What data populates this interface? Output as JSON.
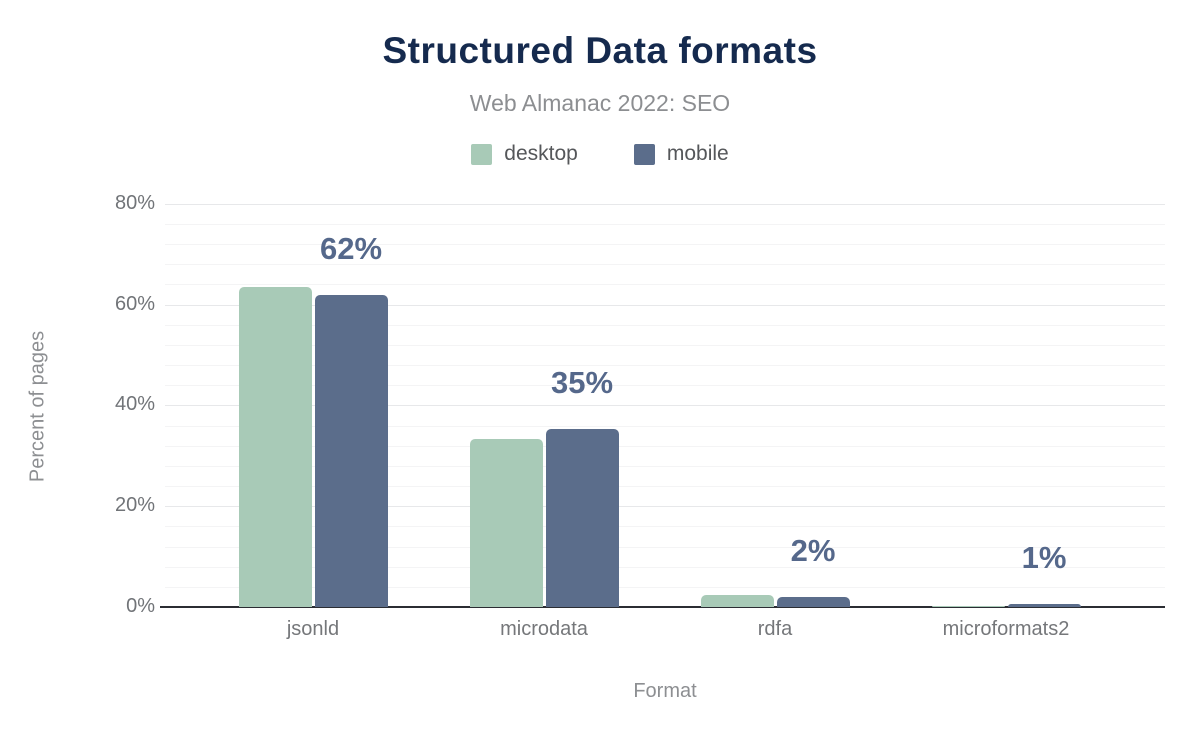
{
  "header": {
    "title": "Structured Data formats",
    "subtitle": "Web Almanac 2022: SEO"
  },
  "chart_data": {
    "type": "bar",
    "title": "Structured Data formats",
    "subtitle": "Web Almanac 2022: SEO",
    "categories": [
      "jsonld",
      "microdata",
      "rdfa",
      "microformats2"
    ],
    "series": [
      {
        "name": "desktop",
        "color": "#a8cab7",
        "values": [
          63.5,
          33.4,
          2.4,
          0.1
        ]
      },
      {
        "name": "mobile",
        "color": "#5b6d8b",
        "values": [
          61.9,
          35.3,
          1.9,
          0.5
        ]
      }
    ],
    "value_labels": [
      "62%",
      "35%",
      "2%",
      "1%"
    ],
    "value_label_series": "mobile",
    "xlabel": "Format",
    "ylabel": "Percent of pages",
    "ylim": [
      0,
      80
    ],
    "yticks": [
      {
        "value": 0,
        "label": "0%"
      },
      {
        "value": 20,
        "label": "20%"
      },
      {
        "value": 40,
        "label": "40%"
      },
      {
        "value": 60,
        "label": "60%"
      },
      {
        "value": 80,
        "label": "80%"
      }
    ],
    "grid": {
      "enabled": true,
      "minor_step": 4,
      "major_step": 20
    },
    "legend_position": "top"
  },
  "colors": {
    "title": "#152a4e",
    "subtitle": "#8c8e91",
    "desktop_bar": "#a8cab7",
    "mobile_bar": "#5b6d8b",
    "value_label": "#55688b",
    "axis_text": "#717478",
    "baseline": "#2b2d33",
    "gridline_minor": "#f4f4f5",
    "gridline_major": "#e7e8ea",
    "background": "#ffffff"
  }
}
